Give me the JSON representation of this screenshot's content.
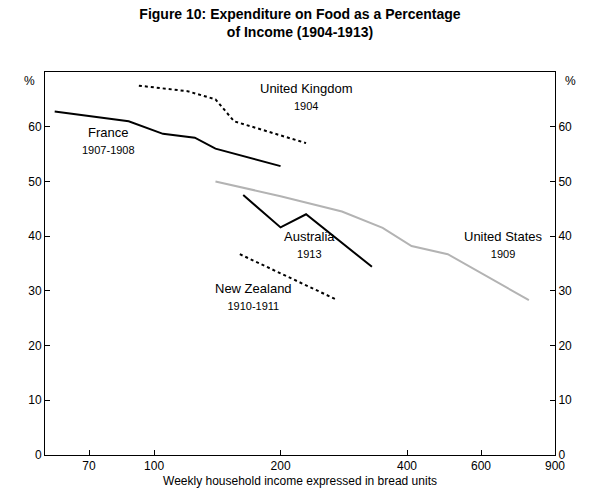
{
  "chart_data": {
    "type": "line",
    "title": [
      "Figure 10: Expenditure on Food as a Percentage",
      "of Income (1904-1913)"
    ],
    "xlabel": "Weekly household income expressed in bread units",
    "ylabel": "%",
    "log": "x",
    "grid": false,
    "xlim": [
      55,
      900
    ],
    "xticks": [
      70,
      100,
      200,
      400,
      600,
      900
    ],
    "ylim": [
      0,
      70
    ],
    "yticks": [
      0,
      10,
      20,
      30,
      40,
      50,
      60
    ],
    "y2lim": [
      0,
      70
    ],
    "y2ticks": [
      0,
      10,
      20,
      30,
      40,
      50,
      60
    ],
    "series": [
      {
        "name": "United Kingdom",
        "period": "1904",
        "color": "#000000",
        "line_style": "dotted",
        "x": [
          92,
          120,
          140,
          155,
          230
        ],
        "values": [
          67.5,
          66.5,
          65,
          61,
          57
        ]
      },
      {
        "name": "France",
        "period": "1907-1908",
        "color": "#000000",
        "line_style": "solid",
        "x": [
          58,
          87,
          105,
          125,
          140,
          200
        ],
        "values": [
          62.8,
          61,
          58.7,
          58,
          56,
          52.8
        ]
      },
      {
        "name": "Australia",
        "period": "1913",
        "color": "#000000",
        "line_style": "solid",
        "x": [
          163,
          200,
          230,
          330
        ],
        "values": [
          47.5,
          41.6,
          44,
          34.4
        ]
      },
      {
        "name": "New Zealand",
        "period": "1910-1911",
        "color": "#000000",
        "line_style": "dotted",
        "x": [
          160,
          270
        ],
        "values": [
          36.7,
          28.5
        ]
      },
      {
        "name": "United States",
        "period": "1909",
        "color": "#b3b3b3",
        "line_style": "solid",
        "x": [
          140,
          200,
          280,
          350,
          410,
          500,
          780
        ],
        "values": [
          50,
          47.3,
          44.5,
          41.5,
          38.2,
          36.7,
          28.3
        ]
      }
    ]
  }
}
